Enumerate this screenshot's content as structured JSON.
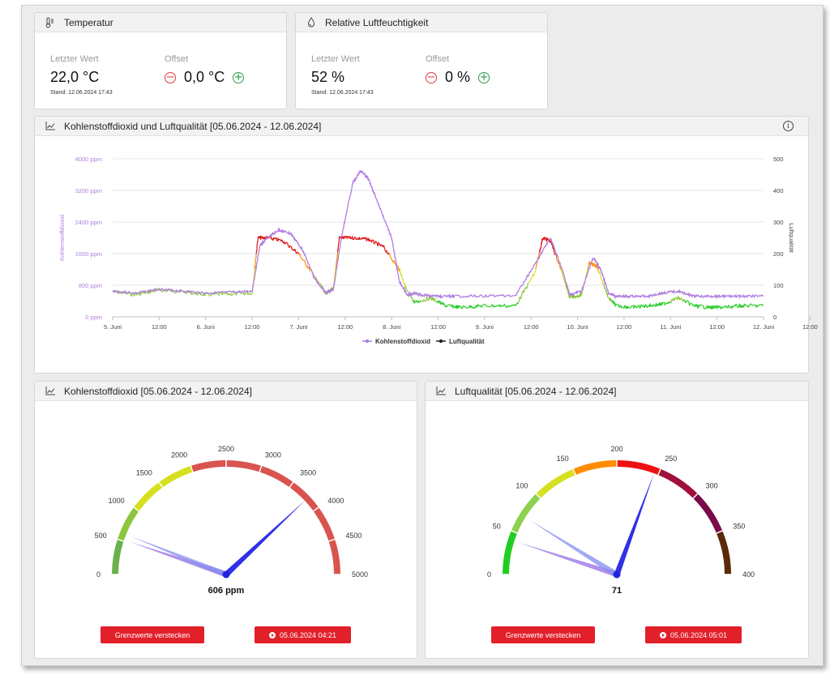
{
  "temperature": {
    "title": "Temperatur",
    "last_label": "Letzter Wert",
    "last_value": "22,0 °C",
    "offset_label": "Offset",
    "offset_value": "0,0 °C",
    "stand": "Stand: 12.06.2024 17:43",
    "icon": "thermometer-icon"
  },
  "humidity": {
    "title": "Relative Luftfeuchtigkeit",
    "last_label": "Letzter Wert",
    "last_value": "52 %",
    "offset_label": "Offset",
    "offset_value": "0 %",
    "stand": "Stand: 12.06.2024 17:43",
    "icon": "droplet-icon"
  },
  "combined_chart": {
    "title": "Kohlenstoffdioxid und Luftqualität [05.06.2024 - 12.06.2024]",
    "info_symbol": "i"
  },
  "co2_gauge": {
    "title": "Kohlenstoffdioxid [05.06.2024 - 12.06.2024]",
    "value_label": "606 ppm",
    "button_hide": "Grenzwerte verstecken",
    "button_time": "05.06.2024 04:21"
  },
  "aq_gauge": {
    "title": "Luftqualität [05.06.2024 - 12.06.2024]",
    "value_label": "71",
    "button_hide": "Grenzwerte verstecken",
    "button_time": "05.06.2024 05:01"
  },
  "colors": {
    "co2_line": "#b07ee0",
    "aq_green": "#22cc22",
    "aq_red": "#e01010",
    "needle": "#2222dd",
    "button_red": "#e2202a"
  },
  "chart_data": [
    {
      "type": "line",
      "y_left_label": "Kohlenstoffdioxid",
      "y_right_label": "Luftqualität",
      "y_left_ticks": [
        "0 ppm",
        "800 ppm",
        "1600 ppm",
        "2400 ppm",
        "3200 ppm",
        "4000 ppm"
      ],
      "y_left_range": [
        0,
        4000
      ],
      "y_right_ticks": [
        "0",
        "100",
        "200",
        "300",
        "400",
        "500"
      ],
      "y_right_range": [
        0,
        500
      ],
      "x_ticks": [
        "5. Juni",
        "12:00",
        "6. Juni",
        "12:00",
        "7. Juni",
        "12:00",
        "8. Juni",
        "12:00",
        "9. Juni",
        "12:00",
        "10. Juni",
        "12:00",
        "11. Juni",
        "12:00",
        "12. Juni",
        "12:00"
      ],
      "x_range_hours": [
        0,
        168
      ],
      "grid": true,
      "legend_position": "bottom",
      "series": [
        {
          "name": "Kohlenstoffdioxid",
          "axis": "left",
          "x": [
            0,
            6,
            12,
            18,
            24,
            30,
            36,
            38,
            40,
            43,
            46,
            49,
            52,
            55,
            57,
            59,
            62,
            64,
            66,
            68,
            72,
            74,
            76,
            78,
            80,
            84,
            88,
            96,
            104,
            110,
            113,
            116,
            118,
            121,
            124,
            126,
            128,
            130,
            134,
            138,
            142,
            146,
            150,
            154,
            158,
            162,
            168
          ],
          "values": [
            650,
            600,
            700,
            650,
            600,
            620,
            650,
            1800,
            2000,
            2200,
            2100,
            1700,
            1000,
            600,
            700,
            2000,
            3400,
            3700,
            3500,
            3000,
            2000,
            900,
            550,
            600,
            550,
            520,
            520,
            530,
            540,
            1500,
            2000,
            1200,
            550,
            650,
            1500,
            1200,
            600,
            520,
            520,
            520,
            600,
            650,
            520,
            520,
            520,
            520,
            530
          ]
        },
        {
          "name": "Luftqualität",
          "axis": "right",
          "x": [
            0,
            6,
            12,
            18,
            24,
            30,
            36,
            37.5,
            40,
            44,
            48,
            52,
            55,
            57,
            58.5,
            62,
            66,
            70,
            74,
            76,
            78,
            82,
            86,
            90,
            96,
            104,
            109,
            111,
            113,
            116,
            118,
            121,
            123,
            125,
            128,
            130,
            134,
            138,
            142,
            146,
            150,
            154,
            158,
            162,
            168
          ],
          "values": [
            80,
            70,
            85,
            80,
            70,
            72,
            75,
            250,
            250,
            240,
            200,
            130,
            75,
            90,
            250,
            250,
            245,
            220,
            150,
            80,
            45,
            60,
            35,
            30,
            35,
            35,
            140,
            250,
            240,
            140,
            60,
            70,
            170,
            160,
            60,
            35,
            30,
            35,
            40,
            60,
            35,
            30,
            30,
            35,
            35
          ]
        }
      ]
    },
    {
      "type": "gauge",
      "min": 0,
      "max": 5000,
      "ticks": [
        "0",
        "500",
        "1000",
        "1500",
        "2000",
        "2500",
        "3000",
        "3500",
        "4000",
        "4500",
        "5000"
      ],
      "bands": [
        {
          "from": 0,
          "to": 500,
          "color": "#6ab04c"
        },
        {
          "from": 500,
          "to": 1000,
          "color": "#8cc63f"
        },
        {
          "from": 1000,
          "to": 2000,
          "color": "#d6e021"
        },
        {
          "from": 2000,
          "to": 5000,
          "color": "#d9534f"
        }
      ],
      "value": 606,
      "needles": [
        3800,
        520,
        606
      ]
    },
    {
      "type": "gauge",
      "min": 0,
      "max": 400,
      "ticks": [
        "0",
        "50",
        "100",
        "150",
        "200",
        "250",
        "300",
        "350",
        "400"
      ],
      "bands": [
        {
          "from": 0,
          "to": 50,
          "color": "#22cc22"
        },
        {
          "from": 50,
          "to": 100,
          "color": "#8cd14f"
        },
        {
          "from": 100,
          "to": 150,
          "color": "#d6e021"
        },
        {
          "from": 150,
          "to": 200,
          "color": "#ff8c00"
        },
        {
          "from": 200,
          "to": 250,
          "color": "#ee1111"
        },
        {
          "from": 250,
          "to": 300,
          "color": "#a0103a"
        },
        {
          "from": 300,
          "to": 350,
          "color": "#7a0a4a"
        },
        {
          "from": 350,
          "to": 400,
          "color": "#5a2a0a"
        }
      ],
      "value": 71,
      "needles": [
        245,
        40,
        71
      ]
    }
  ]
}
